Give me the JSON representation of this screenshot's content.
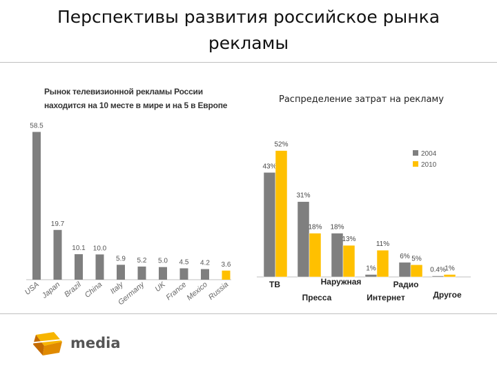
{
  "slide": {
    "title_line1": "Перспективы развития российское рынка",
    "title_line2": "рекламы"
  },
  "chart_data": [
    {
      "type": "bar",
      "title_line1": "Рынок телевизионной рекламы России",
      "title_line2": "находится на 10 месте в мире и на 5 в Европе",
      "categories": [
        "USA",
        "Japan",
        "Brazil",
        "China",
        "Italy",
        "Germany",
        "UK",
        "France",
        "Mexico",
        "Russia"
      ],
      "values": [
        58.5,
        19.7,
        10.1,
        10.0,
        5.9,
        5.2,
        5.0,
        4.5,
        4.2,
        3.6
      ],
      "value_labels": [
        "58.5",
        "19.7",
        "10.1",
        "10.0",
        "5.9",
        "5.2",
        "5.0",
        "4.5",
        "4.2",
        "3.6"
      ],
      "highlight_index": 9,
      "ylim": [
        0,
        60
      ],
      "colors": {
        "bar": "#7f7f7f",
        "highlight": "#ffc000"
      }
    },
    {
      "type": "bar",
      "title": "Распределение затрат на рекламу",
      "categories": [
        "ТВ",
        "Пресса",
        "Наружная",
        "Интернет",
        "Радио",
        "Другое"
      ],
      "series": [
        {
          "name": "2004",
          "values": [
            43,
            31,
            18,
            1,
            6,
            0.4
          ],
          "labels": [
            "43%",
            "31%",
            "18%",
            "1%",
            "6%",
            "0.4%"
          ],
          "color": "#7f7f7f"
        },
        {
          "name": "2010",
          "values": [
            52,
            18,
            13,
            11,
            5,
            1
          ],
          "labels": [
            "52%",
            "18%",
            "13%",
            "11%",
            "5%",
            "1%"
          ],
          "color": "#ffc000"
        }
      ],
      "ylim": [
        0,
        55
      ],
      "legend_position": "top-right"
    }
  ],
  "logo": {
    "text": "media",
    "icon": "spark-cube-logo-icon"
  }
}
